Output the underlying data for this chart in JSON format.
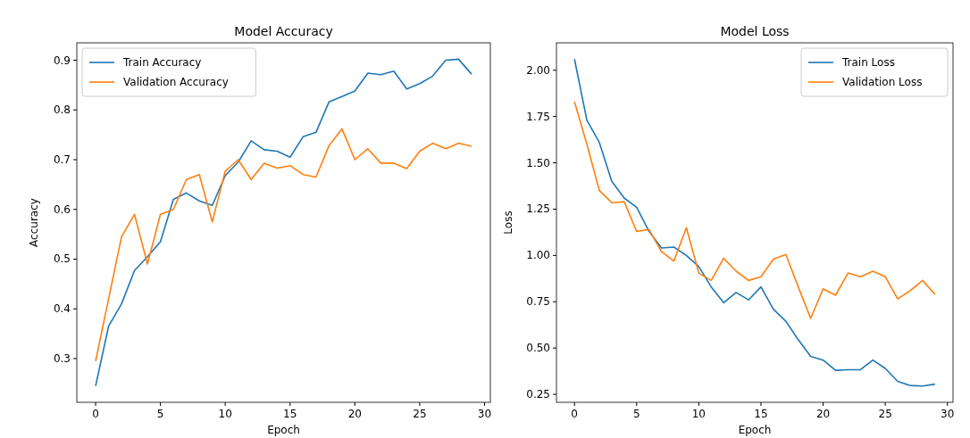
{
  "chart_data": [
    {
      "type": "line",
      "title": "Model Accuracy",
      "xlabel": "Epoch",
      "ylabel": "Accuracy",
      "x": [
        0,
        1,
        2,
        3,
        4,
        5,
        6,
        7,
        8,
        9,
        10,
        11,
        12,
        13,
        14,
        15,
        16,
        17,
        18,
        19,
        20,
        21,
        22,
        23,
        24,
        25,
        26,
        27,
        28,
        29
      ],
      "xlim": [
        -1.45,
        30.45
      ],
      "xticks": [
        0,
        5,
        10,
        15,
        20,
        25,
        30
      ],
      "ylim": [
        0.212,
        0.935
      ],
      "yticks": [
        {
          "value": 0.3,
          "label": "0.3"
        },
        {
          "value": 0.4,
          "label": "0.4"
        },
        {
          "value": 0.5,
          "label": "0.5"
        },
        {
          "value": 0.6,
          "label": "0.6"
        },
        {
          "value": 0.7,
          "label": "0.7"
        },
        {
          "value": 0.8,
          "label": "0.8"
        },
        {
          "value": 0.9,
          "label": "0.9"
        }
      ],
      "legend": "top left",
      "grid": false,
      "series": [
        {
          "name": "Train Accuracy",
          "color": "#1f77b4",
          "values": [
            0.245,
            0.365,
            0.41,
            0.477,
            0.505,
            0.535,
            0.62,
            0.633,
            0.617,
            0.608,
            0.668,
            0.695,
            0.738,
            0.72,
            0.717,
            0.705,
            0.746,
            0.755,
            0.816,
            0.827,
            0.838,
            0.874,
            0.871,
            0.878,
            0.842,
            0.853,
            0.868,
            0.9,
            0.902,
            0.872
          ]
        },
        {
          "name": "Validation Accuracy",
          "color": "#ff7f0e",
          "values": [
            0.295,
            0.42,
            0.545,
            0.59,
            0.49,
            0.59,
            0.6,
            0.66,
            0.67,
            0.575,
            0.677,
            0.7,
            0.66,
            0.693,
            0.683,
            0.688,
            0.67,
            0.665,
            0.728,
            0.762,
            0.7,
            0.722,
            0.693,
            0.693,
            0.682,
            0.717,
            0.733,
            0.722,
            0.733,
            0.727
          ]
        }
      ]
    },
    {
      "type": "line",
      "title": "Model Loss",
      "xlabel": "Epoch",
      "ylabel": "Loss",
      "x": [
        0,
        1,
        2,
        3,
        4,
        5,
        6,
        7,
        8,
        9,
        10,
        11,
        12,
        13,
        14,
        15,
        16,
        17,
        18,
        19,
        20,
        21,
        22,
        23,
        24,
        25,
        26,
        27,
        28,
        29
      ],
      "xlim": [
        -1.45,
        30.45
      ],
      "xticks": [
        0,
        5,
        10,
        15,
        20,
        25,
        30
      ],
      "ylim": [
        0.207,
        2.148
      ],
      "yticks": [
        {
          "value": 0.25,
          "label": "0.25"
        },
        {
          "value": 0.5,
          "label": "0.50"
        },
        {
          "value": 0.75,
          "label": "0.75"
        },
        {
          "value": 1,
          "label": "1.00"
        },
        {
          "value": 1.25,
          "label": "1.25"
        },
        {
          "value": 1.5,
          "label": "1.50"
        },
        {
          "value": 1.75,
          "label": "1.75"
        },
        {
          "value": 2,
          "label": "2.00"
        }
      ],
      "legend": "top right",
      "grid": false,
      "series": [
        {
          "name": "Train Loss",
          "color": "#1f77b4",
          "values": [
            2.06,
            1.73,
            1.61,
            1.4,
            1.31,
            1.26,
            1.13,
            1.04,
            1.045,
            1.0,
            0.94,
            0.83,
            0.745,
            0.8,
            0.76,
            0.83,
            0.71,
            0.645,
            0.545,
            0.455,
            0.435,
            0.38,
            0.383,
            0.383,
            0.435,
            0.39,
            0.32,
            0.298,
            0.295,
            0.305
          ]
        },
        {
          "name": "Validation Loss",
          "color": "#ff7f0e",
          "values": [
            1.83,
            1.6,
            1.35,
            1.285,
            1.29,
            1.13,
            1.14,
            1.02,
            0.97,
            1.15,
            0.905,
            0.865,
            0.985,
            0.915,
            0.865,
            0.885,
            0.98,
            1.005,
            0.83,
            0.66,
            0.82,
            0.785,
            0.905,
            0.885,
            0.915,
            0.885,
            0.765,
            0.81,
            0.865,
            0.79
          ]
        }
      ]
    }
  ]
}
